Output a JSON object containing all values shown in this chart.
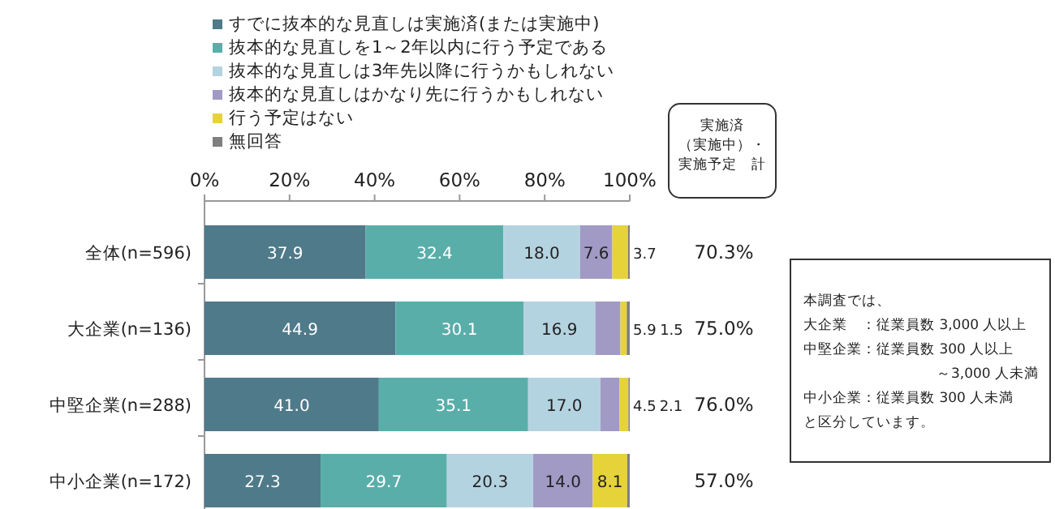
{
  "chart_data": {
    "type": "bar",
    "orientation": "horizontal",
    "stacked": true,
    "legend": "top",
    "categories": [
      "全体(n=596)",
      "大企業(n=136)",
      "中堅企業(n=288)",
      "中小企業(n=172)"
    ],
    "series": [
      {
        "name": "すでに抜本的な見直しは実施済(または実施中)",
        "color": "#4f7a8a",
        "values": [
          37.9,
          44.9,
          41.0,
          27.3
        ],
        "value_labels": [
          "37.9",
          "44.9",
          "41.0",
          "27.3"
        ]
      },
      {
        "name": "抜本的な見直しを1～2年以内に行う予定である",
        "color": "#5aaeaa",
        "values": [
          32.4,
          30.1,
          35.1,
          29.7
        ],
        "value_labels": [
          "32.4",
          "30.1",
          "35.1",
          "29.7"
        ]
      },
      {
        "name": "抜本的な見直しは3年先以降に行うかもしれない",
        "color": "#b4d3e0",
        "values": [
          18.0,
          16.9,
          17.0,
          20.3
        ],
        "value_labels": [
          "18.0",
          "16.9",
          "17.0",
          "20.3"
        ]
      },
      {
        "name": "抜本的な見直しはかなり先に行うかもしれない",
        "color": "#a19ac4",
        "values": [
          7.6,
          5.9,
          4.5,
          14.0
        ],
        "value_labels": [
          "7.6",
          "5.9",
          "4.5",
          "14.0"
        ]
      },
      {
        "name": "行う予定はない",
        "color": "#e6d33a",
        "values": [
          3.7,
          1.5,
          2.1,
          8.1
        ],
        "value_labels": [
          "3.7",
          "1.5",
          "2.1",
          "8.1"
        ]
      },
      {
        "name": "無回答",
        "color": "#7f7f7f",
        "values": [
          0.4,
          0.7,
          0.3,
          0.6
        ]
      }
    ],
    "xlim": [
      0,
      100
    ],
    "xticks": [
      {
        "value": 0,
        "label": "0%"
      },
      {
        "value": 20,
        "label": "20%"
      },
      {
        "value": 40,
        "label": "40%"
      },
      {
        "value": 60,
        "label": "60%"
      },
      {
        "value": 80,
        "label": "80%"
      },
      {
        "value": 100,
        "label": "100%"
      }
    ],
    "annotations": [
      "実施済",
      "（実施中）・",
      "実施予定　計",
      "本調査では、",
      "大企業　：従業員数 3,000 人以上",
      "中堅企業：従業員数 300 人以上",
      "～3,000 人未満",
      "中小企業：従業員数 300 人未満",
      "と区分しています。",
      "70.3%",
      "75.0%",
      "76.0%",
      "57.0%"
    ]
  }
}
